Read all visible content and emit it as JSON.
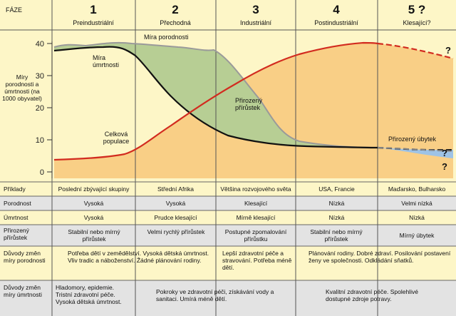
{
  "header": {
    "phase_label": "FÁZE",
    "phases": [
      {
        "number": "1",
        "name": "Preindustriální"
      },
      {
        "number": "2",
        "name": "Přechodná"
      },
      {
        "number": "3",
        "name": "Industriální"
      },
      {
        "number": "4",
        "name": "Postindustriální"
      },
      {
        "number": "5 ?",
        "name": "Klesající?"
      }
    ]
  },
  "chart": {
    "y_axis_label": "Míry porodnosti a úmrtnosti (na 1000 obyvatel)",
    "y_ticks": [
      "40",
      "30",
      "20",
      "10",
      "0"
    ],
    "annotations": {
      "birth_rate": "Míra porodnosti",
      "death_rate": "Míra úmrtnosti",
      "total_population": "Celková populace",
      "natural_increase": "Přirozený přírůstek",
      "natural_decrease": "Přirozený úbytek",
      "q1": "?",
      "q2": "?",
      "q3": "?"
    },
    "colors": {
      "population_area": "#f9cf86",
      "increase_area": "#b7ce94",
      "decrease_area": "#9ec3e6",
      "birth_line": "#9a9a9a",
      "death_line": "#111111",
      "population_line": "#d22b1f",
      "header_bg": "#fdf6c7",
      "odd_row_bg": "#fdf6c7",
      "even_row_bg": "#e3e3e3"
    }
  },
  "table": {
    "rows": [
      {
        "label": "Příklady",
        "cells": [
          "Poslední zbývající skupiny",
          "Střední Afrika",
          "Většina rozvojového světa",
          "USA, Francie",
          "Maďarsko, Bulharsko"
        ]
      },
      {
        "label": "Porodnost",
        "cells": [
          "Vysoká",
          "Vysoká",
          "Klesající",
          "Nízká",
          "Velmi nízká"
        ]
      },
      {
        "label": "Úmrtnost",
        "cells": [
          "Vysoká",
          "Prudce klesající",
          "Mírně klesající",
          "Nízká",
          "Nízká"
        ]
      },
      {
        "label": "Přirozený přírůstek",
        "cells": [
          "Stabilní nebo mírný přírůstek",
          "Velmi rychlý přírůstek",
          "Postupné zpomalování přírůstku",
          "Stabilní nebo mírný přírůstek",
          "Mírný úbytek"
        ]
      }
    ],
    "reasons_birth": {
      "label": "Důvody změn míry porodnosti",
      "col1": "Potřeba dětí v zemědělství. Vysoká dětská úmrtnost. Vliv tradic a náboženství. Žádné plánování rodiny.",
      "col3": "Lepší zdravotní péče a stravování. Potřeba méně dětí.",
      "col4": "Plánování rodiny. Dobré zdraví. Posilování postavení ženy ve společnosti. Odkládání sňatků."
    },
    "reasons_death": {
      "label": "Důvody změn míry úmrtnosti",
      "col1": "Hladomory, epidemie. Tristní zdravotní péče. Vysoká dětská úmrtnost.",
      "col2": "Pokroky ve zdravotní péči, získávání vody a sanitaci. Umírá méně dětí.",
      "col4": "Kvalitní zdravotní péče. Spolehlivé dostupné zdroje potravy."
    }
  }
}
